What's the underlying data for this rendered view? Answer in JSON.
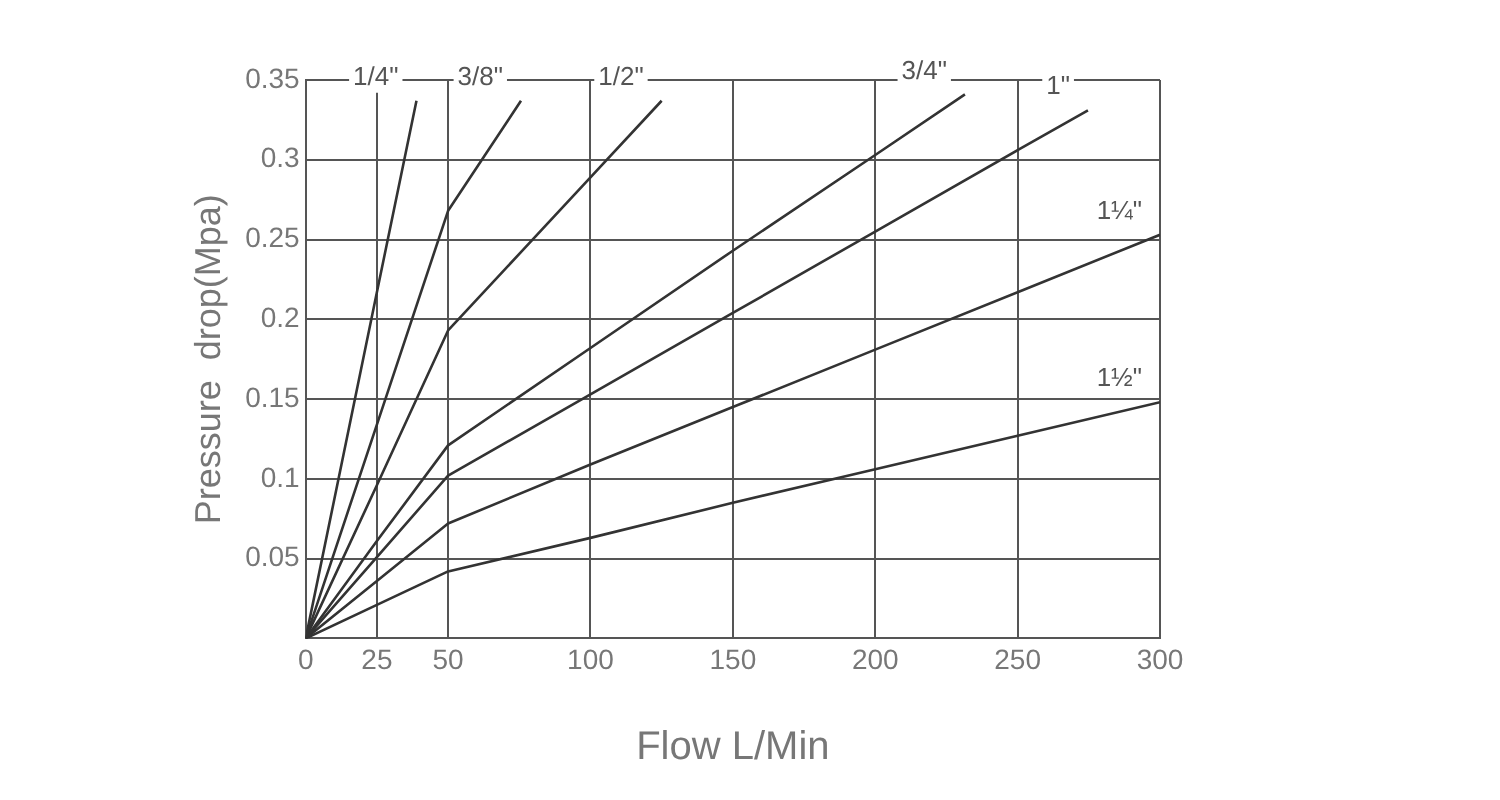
{
  "chart_data": {
    "type": "line",
    "xlabel": "Flow L/Min",
    "ylabel": "Pressure  drop(Mpa)",
    "xlim": [
      0,
      300
    ],
    "xticks": [
      0,
      25,
      50,
      100,
      150,
      200,
      250,
      300
    ],
    "ylim": [
      0,
      0.35
    ],
    "yticks": [
      0.05,
      0.1,
      0.15,
      0.2,
      0.25,
      0.3,
      0.35
    ],
    "grid": true,
    "legend": false,
    "marker": "none",
    "line_style": "solid",
    "series": [
      {
        "name": "1/4\"",
        "color": "#333333",
        "x": [
          0,
          25,
          38.9
        ],
        "values": [
          0,
          0.217,
          0.337
        ]
      },
      {
        "name": "3/8\"",
        "color": "#333333",
        "x": [
          0,
          25,
          50,
          75.6
        ],
        "values": [
          0,
          0.134,
          0.268,
          0.337
        ]
      },
      {
        "name": "1/2\"",
        "color": "#333333",
        "x": [
          0,
          25,
          50,
          100,
          125
        ],
        "values": [
          0,
          0.096,
          0.193,
          0.289,
          0.337
        ]
      },
      {
        "name": "3/4\"",
        "color": "#333333",
        "x": [
          0,
          25,
          50,
          100,
          150,
          200,
          231.5
        ],
        "values": [
          0,
          0.061,
          0.121,
          0.182,
          0.243,
          0.303,
          0.341
        ]
      },
      {
        "name": "1\"",
        "color": "#333333",
        "x": [
          0,
          25,
          50,
          100,
          150,
          200,
          250,
          274.7
        ],
        "values": [
          0,
          0.051,
          0.102,
          0.153,
          0.204,
          0.255,
          0.306,
          0.331
        ]
      },
      {
        "name": "1¼\"",
        "color": "#333333",
        "x": [
          0,
          25,
          50,
          100,
          150,
          200,
          250,
          300
        ],
        "values": [
          0,
          0.036,
          0.072,
          0.109,
          0.145,
          0.181,
          0.217,
          0.253
        ]
      },
      {
        "name": "1½\"",
        "color": "#333333",
        "x": [
          0,
          25,
          50,
          100,
          150,
          200,
          250,
          300
        ],
        "values": [
          0,
          0.021,
          0.042,
          0.063,
          0.085,
          0.106,
          0.127,
          0.148
        ]
      }
    ]
  }
}
